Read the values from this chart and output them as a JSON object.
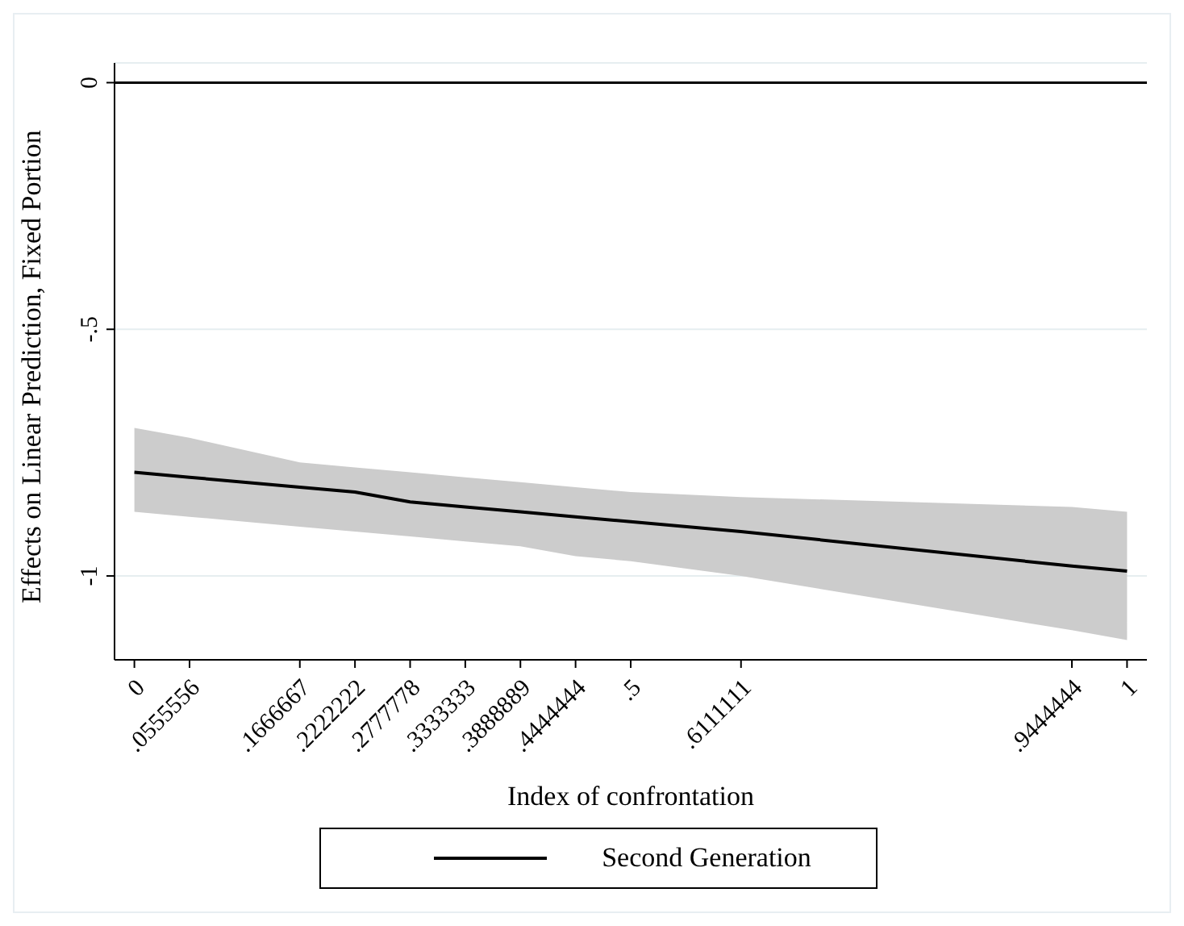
{
  "chart_data": {
    "type": "line",
    "xlabel": "Index of confrontation",
    "ylabel": "Effects on Linear Prediction, Fixed Portion",
    "x": [
      0,
      0.0555556,
      0.1666667,
      0.2222222,
      0.2777778,
      0.3333333,
      0.3888889,
      0.4444444,
      0.5,
      0.6111111,
      0.9444444,
      1
    ],
    "series": [
      {
        "name": "Second Generation",
        "color": "#000000",
        "values": [
          -0.79,
          -0.8,
          -0.82,
          -0.83,
          -0.85,
          -0.86,
          -0.87,
          -0.88,
          -0.89,
          -0.91,
          -0.98,
          -0.99
        ],
        "lower": [
          -0.87,
          -0.88,
          -0.9,
          -0.91,
          -0.92,
          -0.93,
          -0.94,
          -0.96,
          -0.97,
          -1.0,
          -1.11,
          -1.13
        ],
        "upper": [
          -0.7,
          -0.72,
          -0.77,
          -0.78,
          -0.79,
          -0.8,
          -0.81,
          -0.82,
          -0.83,
          -0.84,
          -0.86,
          -0.87
        ]
      }
    ],
    "xlim": [
      -0.02,
      1.02
    ],
    "xticks": [
      0,
      {
        "value": 0.0555556,
        "label": ".0555556"
      },
      {
        "value": 0.1666667,
        "label": ".1666667"
      },
      {
        "value": 0.2222222,
        "label": ".2222222"
      },
      {
        "value": 0.2777778,
        "label": ".2777778"
      },
      {
        "value": 0.3333333,
        "label": ".3333333"
      },
      {
        "value": 0.3888889,
        "label": ".3888889"
      },
      {
        "value": 0.4444444,
        "label": ".4444444"
      },
      {
        "value": 0.5,
        "label": ".5"
      },
      {
        "value": 0.6111111,
        "label": ".6111111"
      },
      {
        "value": 0.9444444,
        "label": ".9444444"
      },
      1
    ],
    "ylim": [
      -1.17,
      0.04
    ],
    "yticks": [
      {
        "value": -1,
        "label": "-1"
      },
      {
        "value": -0.5,
        "label": "-.5"
      },
      0
    ],
    "ref_lines": [
      {
        "axis": "y",
        "value": 0,
        "color": "#000000"
      }
    ],
    "grid": "y",
    "legend": "bottom",
    "marker": "none",
    "line_style": "solid"
  }
}
